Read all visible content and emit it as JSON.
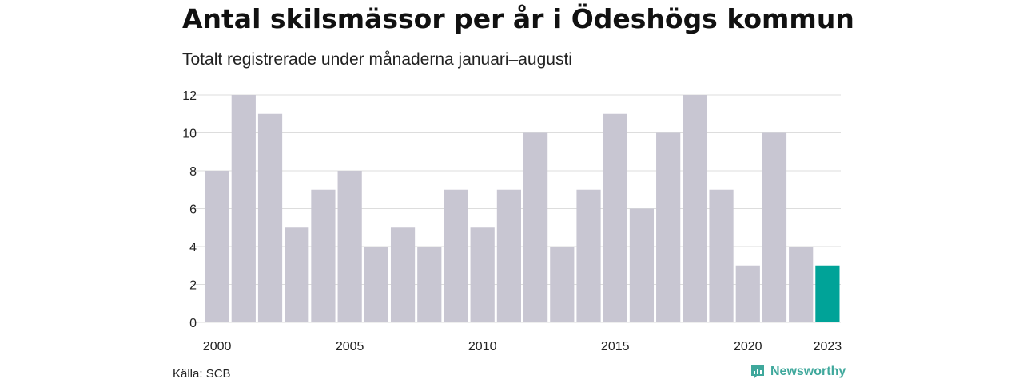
{
  "header": {
    "title": "Antal skilsmässor per år i Ödeshögs kommun",
    "subtitle": "Totalt registrerade under månaderna januari–augusti"
  },
  "footer": {
    "source": "Källa: SCB",
    "brand": "Newsworthy"
  },
  "colors": {
    "bar": "#c8c6d2",
    "highlight": "#00a398",
    "grid": "#dddddd",
    "brand": "#3fa89c"
  },
  "chart_data": {
    "type": "bar",
    "title": "Antal skilsmässor per år i Ödeshögs kommun",
    "subtitle": "Totalt registrerade under månaderna januari–augusti",
    "categories": [
      "2000",
      "2001",
      "2002",
      "2003",
      "2004",
      "2005",
      "2006",
      "2007",
      "2008",
      "2009",
      "2010",
      "2011",
      "2012",
      "2013",
      "2014",
      "2015",
      "2016",
      "2017",
      "2018",
      "2019",
      "2020",
      "2021",
      "2022",
      "2023"
    ],
    "values": [
      8,
      12,
      11,
      5,
      7,
      8,
      4,
      5,
      4,
      7,
      5,
      7,
      10,
      4,
      7,
      11,
      6,
      10,
      12,
      7,
      3,
      10,
      4,
      3
    ],
    "highlight": [
      "2023"
    ],
    "x_tick_labels": [
      "2000",
      "2005",
      "2010",
      "2015",
      "2020",
      "2023"
    ],
    "y_ticks": [
      0,
      2,
      4,
      6,
      8,
      10,
      12
    ],
    "ylim": [
      0,
      12
    ],
    "xlabel": "",
    "ylabel": "",
    "grid": true,
    "legend": "none"
  }
}
